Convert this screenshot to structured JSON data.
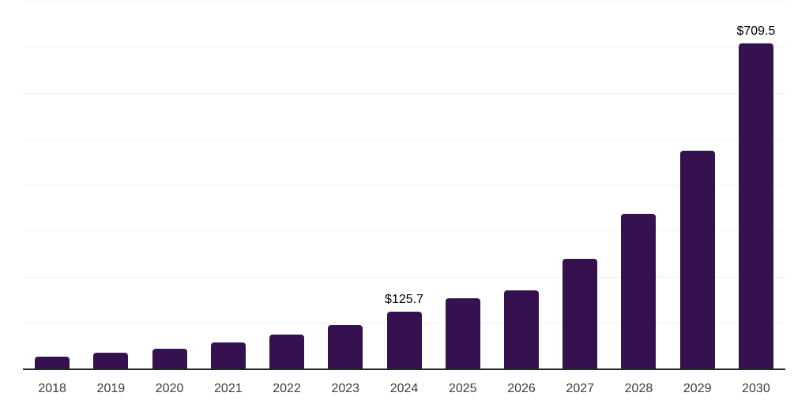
{
  "page": {
    "background_color": "#ffffff"
  },
  "chart_data": {
    "type": "bar",
    "title": "",
    "xlabel": "",
    "ylabel": "",
    "categories": [
      "2018",
      "2019",
      "2020",
      "2021",
      "2022",
      "2023",
      "2024",
      "2025",
      "2026",
      "2027",
      "2028",
      "2029",
      "2030"
    ],
    "values": [
      27,
      35.5,
      45,
      59,
      75,
      96,
      125.7,
      155,
      171,
      240,
      338,
      476,
      709.5
    ],
    "data_labels": [
      null,
      null,
      null,
      null,
      null,
      null,
      "$125.7",
      null,
      null,
      null,
      null,
      null,
      "$709.5"
    ],
    "ylim": [
      0,
      800
    ],
    "gridline_step": 100,
    "grid": "horizontal",
    "legend": "none",
    "bar_color": "#36114F",
    "gridline_color": "#F2F2F2",
    "baseline_color": "#262626",
    "tick_label_color": "#3C3C3C",
    "data_label_color": "#000000"
  }
}
